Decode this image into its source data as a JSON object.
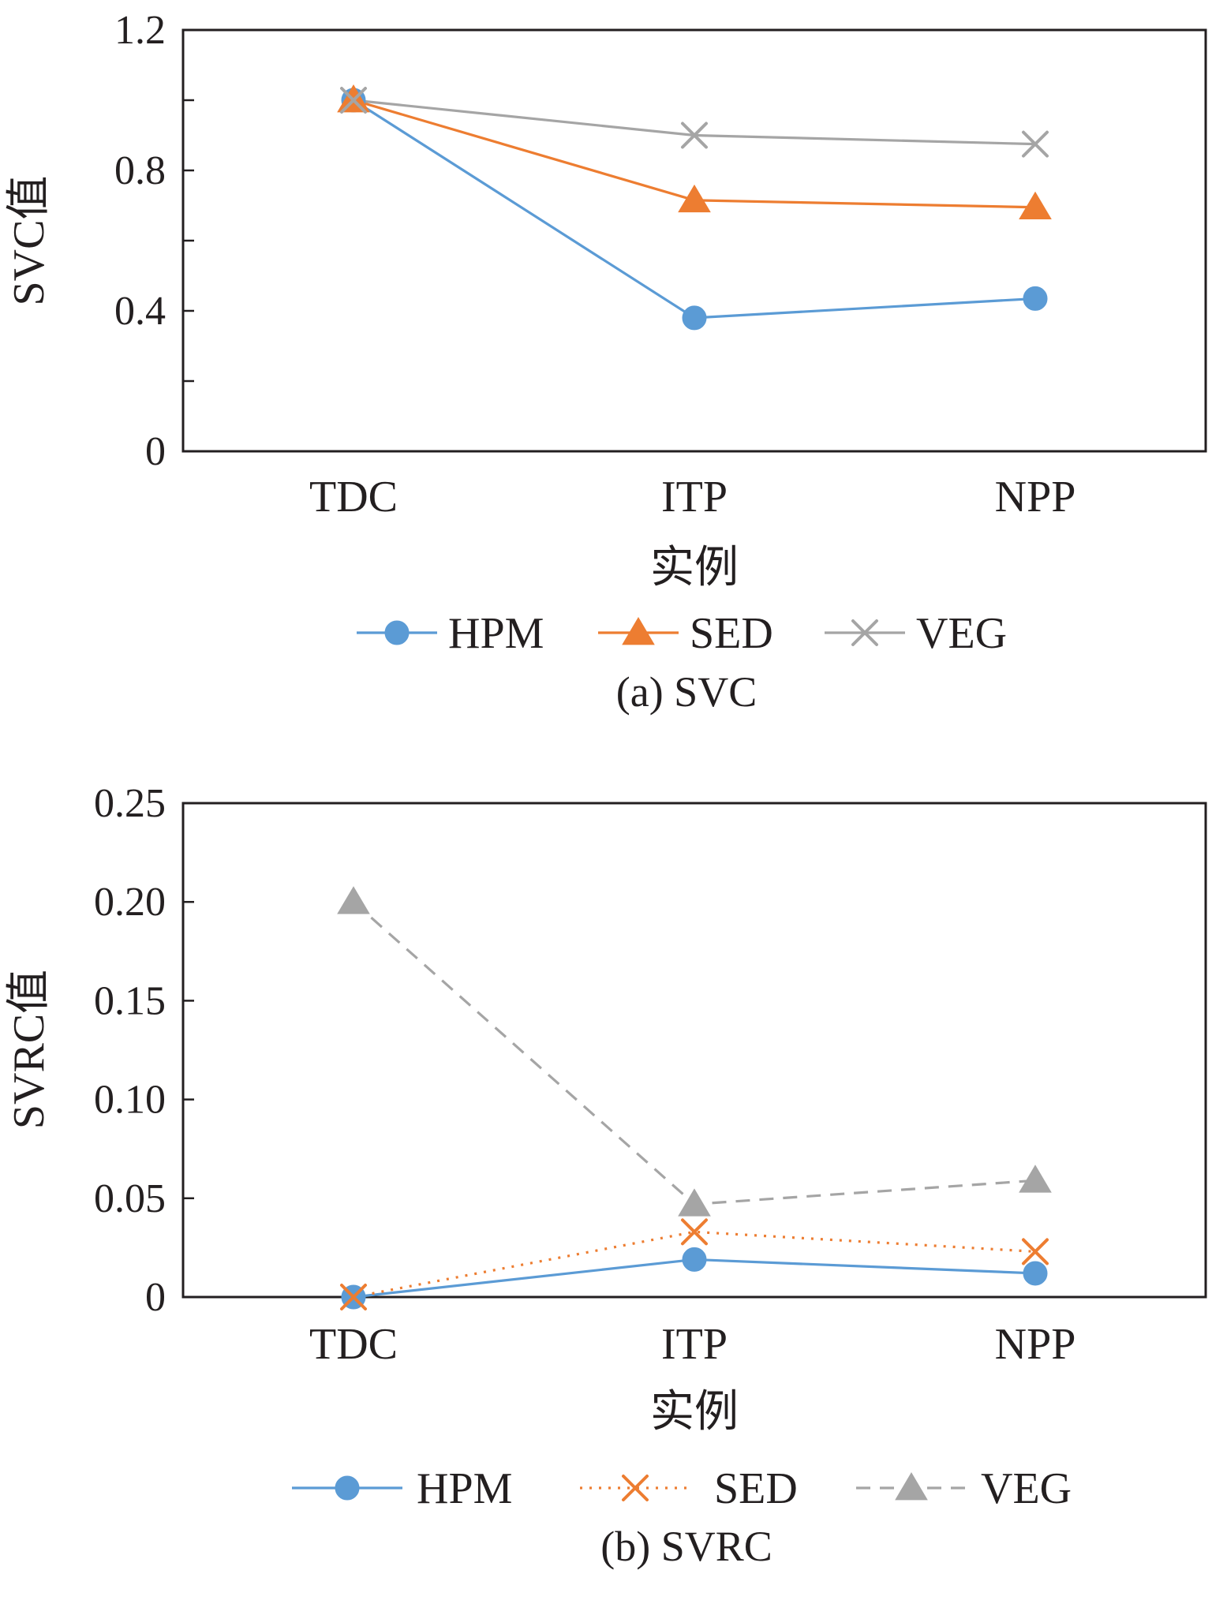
{
  "chart_data": [
    {
      "type": "line",
      "caption": "(a) SVC",
      "xlabel": "实例",
      "ylabel": "SVC值",
      "categories": [
        "TDC",
        "ITP",
        "NPP"
      ],
      "ylim": [
        0,
        1.2
      ],
      "yticks": [
        0,
        0.4,
        0.8,
        1.2
      ],
      "ytick_labels": [
        "0",
        "0.4",
        "0.8",
        "1.2"
      ],
      "grid": false,
      "legend_position": "bottom",
      "series": [
        {
          "name": "HPM",
          "values": [
            1.0,
            0.38,
            0.435
          ],
          "color": "#5b9bd5",
          "marker": "circle",
          "line": "solid"
        },
        {
          "name": "SED",
          "values": [
            1.0,
            0.715,
            0.695
          ],
          "color": "#ed7d31",
          "marker": "triangle",
          "line": "solid"
        },
        {
          "name": "VEG",
          "values": [
            1.0,
            0.9,
            0.875
          ],
          "color": "#a5a5a5",
          "marker": "x",
          "line": "solid"
        }
      ]
    },
    {
      "type": "line",
      "caption": "(b) SVRC",
      "xlabel": "实例",
      "ylabel": "SVRC值",
      "categories": [
        "TDC",
        "ITP",
        "NPP"
      ],
      "ylim": [
        0,
        0.25
      ],
      "yticks": [
        0,
        0.05,
        0.1,
        0.15,
        0.2,
        0.25
      ],
      "ytick_labels": [
        "0",
        "0.05",
        "0.10",
        "0.15",
        "0.20",
        "0.25"
      ],
      "grid": false,
      "legend_position": "bottom",
      "series": [
        {
          "name": "HPM",
          "values": [
            0.0,
            0.019,
            0.012
          ],
          "color": "#5b9bd5",
          "marker": "circle",
          "line": "solid"
        },
        {
          "name": "SED",
          "values": [
            0.0,
            0.033,
            0.023
          ],
          "color": "#ed7d31",
          "marker": "x",
          "line": "dotted"
        },
        {
          "name": "VEG",
          "values": [
            0.2,
            0.047,
            0.059
          ],
          "color": "#a5a5a5",
          "marker": "triangle",
          "line": "dashed"
        }
      ]
    }
  ]
}
